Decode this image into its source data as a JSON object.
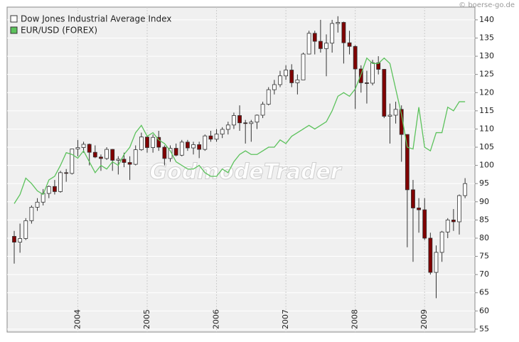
{
  "chart_data": {
    "type": "candlestick",
    "copyright": "© boerse-go.de",
    "watermark": "GodmodeTrader",
    "categories": [
      null,
      null,
      null,
      null,
      null,
      null,
      null,
      null,
      null,
      null,
      null,
      "2004",
      null,
      null,
      null,
      null,
      null,
      null,
      null,
      null,
      null,
      null,
      null,
      "2005",
      null,
      null,
      null,
      null,
      null,
      null,
      null,
      null,
      null,
      null,
      null,
      "2006",
      null,
      null,
      null,
      null,
      null,
      null,
      null,
      null,
      null,
      null,
      null,
      "2007",
      null,
      null,
      null,
      null,
      null,
      null,
      null,
      null,
      null,
      null,
      null,
      "2008",
      null,
      null,
      null,
      null,
      null,
      null,
      null,
      null,
      null,
      null,
      null,
      "2009",
      null,
      null,
      null,
      null,
      null,
      null,
      null
    ],
    "ylim": [
      54.2,
      143.5
    ],
    "yticks": [
      55,
      60,
      65,
      70,
      75,
      80,
      85,
      90,
      95,
      100,
      105,
      110,
      115,
      120,
      125,
      130,
      135,
      140
    ],
    "grid": true,
    "series": [
      {
        "name": "Dow Jones Industrial Average Index",
        "color": "#ffffff",
        "down_color": "#800000",
        "open": [
          80.5,
          78.9,
          79.9,
          84.8,
          88.5,
          89.9,
          92.3,
          94.2,
          92.8,
          98.0,
          97.8,
          104.5,
          104.9,
          105.8,
          103.6,
          102.3,
          101.9,
          104.4,
          101.4,
          101.7,
          100.8,
          100.3,
          104.3,
          107.8,
          104.9,
          107.7,
          105.0,
          101.9,
          104.7,
          102.8,
          106.4,
          104.8,
          105.7,
          104.4,
          108.1,
          107.2,
          108.6,
          109.9,
          111.1,
          113.7,
          111.7,
          111.5,
          111.9,
          113.8,
          116.8,
          120.8,
          122.2,
          124.6,
          126.2,
          122.7,
          123.5,
          130.6,
          136.3,
          134.1,
          132.1,
          133.6,
          139.0,
          139.3,
          133.7,
          132.7,
          126.5,
          122.7,
          122.6,
          128.2,
          126.4,
          113.5,
          113.8,
          115.4,
          108.5,
          93.3,
          88.3,
          87.8,
          80.0,
          70.6,
          76.1,
          81.7,
          85.0,
          84.5,
          91.7
        ],
        "high": [
          82,
          84,
          85.5,
          89,
          91,
          93.5,
          94.5,
          96,
          98.5,
          99,
          104.5,
          107,
          106.5,
          106,
          105.5,
          103,
          105,
          104.5,
          102.5,
          103.5,
          102.5,
          105.5,
          109,
          108,
          108.5,
          109.5,
          105.5,
          105.5,
          106,
          107,
          107,
          106.5,
          106.5,
          108.5,
          109.5,
          110,
          110.5,
          112,
          114.5,
          116.5,
          112.5,
          112.5,
          114,
          117.5,
          121.5,
          123.5,
          126,
          127.5,
          127.8,
          125,
          131,
          137,
          137,
          140,
          136,
          140,
          141,
          139.5,
          137,
          133,
          127.5,
          126,
          129,
          130,
          126.5,
          117,
          117.5,
          116.5,
          108.5,
          96,
          91,
          91,
          81.5,
          78,
          82,
          85.5,
          88,
          92,
          96.5
        ],
        "low": [
          73,
          76,
          79.5,
          84,
          87.5,
          89,
          91,
          92,
          92.5,
          95.5,
          97.5,
          102.5,
          103.5,
          100,
          102,
          98.5,
          101.5,
          98.5,
          97.5,
          99.5,
          96,
          100,
          104,
          103.5,
          103.5,
          104,
          100,
          101,
          102.5,
          102.5,
          104,
          103,
          102,
          104,
          106.5,
          106.5,
          107.5,
          108.5,
          110,
          109.5,
          106,
          106.5,
          110,
          113,
          116.5,
          119.5,
          121.5,
          123.5,
          121.5,
          119.5,
          123.5,
          130.5,
          130.5,
          131,
          124.5,
          131,
          136.5,
          128,
          130.5,
          115.5,
          120,
          117,
          122,
          125,
          113,
          106,
          111.5,
          101,
          77.5,
          73.5,
          81.5,
          79.5,
          70,
          63.5,
          73.5,
          80,
          82,
          81,
          91
        ],
        "close": [
          78.9,
          79.9,
          84.8,
          88.5,
          89.9,
          92.3,
          94.2,
          92.8,
          98.0,
          97.8,
          104.5,
          104.9,
          105.8,
          103.6,
          102.3,
          101.9,
          104.4,
          101.4,
          101.7,
          100.8,
          100.3,
          104.3,
          107.8,
          104.9,
          107.7,
          105.0,
          101.9,
          104.7,
          102.8,
          106.4,
          104.8,
          105.7,
          104.4,
          108.1,
          107.2,
          108.6,
          109.9,
          111.1,
          113.7,
          111.7,
          111.5,
          111.9,
          113.8,
          116.8,
          120.8,
          122.2,
          124.6,
          126.2,
          122.7,
          123.5,
          130.6,
          136.3,
          134.1,
          132.1,
          133.6,
          139.0,
          139.3,
          133.7,
          132.7,
          126.5,
          122.7,
          122.6,
          128.2,
          126.4,
          113.5,
          113.8,
          115.4,
          108.5,
          93.3,
          88.3,
          87.8,
          80.0,
          70.6,
          76.1,
          81.7,
          85.0,
          84.5,
          91.7,
          95.0
        ]
      },
      {
        "name": "EUR/USD (FOREX)",
        "type": "line",
        "color": "#5cc25c",
        "values": [
          89.5,
          92,
          96.5,
          95,
          93,
          92,
          96,
          97,
          100,
          103.5,
          103,
          102,
          104,
          101,
          98,
          100,
          99,
          101,
          100,
          103,
          105,
          109,
          111,
          108,
          109,
          107,
          106,
          104,
          101,
          100,
          99,
          99,
          100,
          98,
          97,
          97,
          99,
          98,
          101,
          103,
          104,
          103,
          103,
          104,
          105,
          105,
          107,
          106,
          108,
          109,
          110,
          111,
          110,
          111,
          112,
          115,
          119,
          120,
          119,
          121,
          125,
          129.5,
          128,
          128,
          129.5,
          128,
          121,
          114,
          105,
          104.5,
          116,
          105,
          104,
          109,
          109,
          116,
          115,
          117.5,
          117.5
        ]
      }
    ]
  }
}
